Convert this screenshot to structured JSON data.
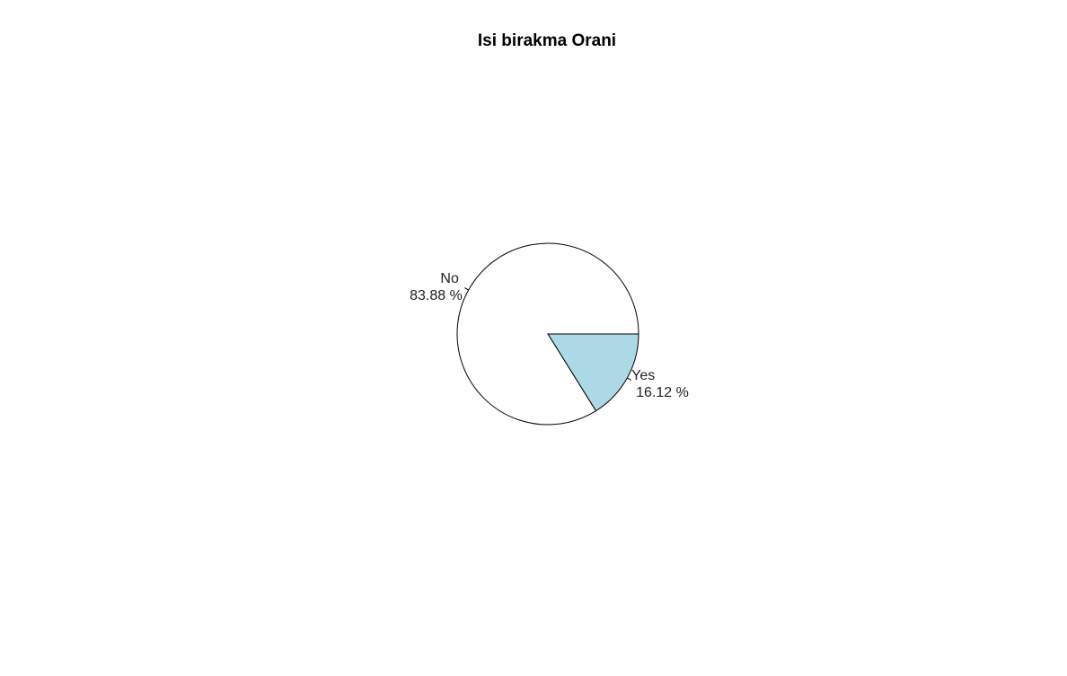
{
  "chart_data": {
    "type": "pie",
    "title": "Isi birakma Orani",
    "slices": [
      {
        "label": "Yes",
        "percent_text": "16.12 %",
        "value": 16.12,
        "color": "#ADD8E6"
      },
      {
        "label": "No",
        "percent_text": "83.88 %",
        "value": 83.88,
        "color": "#FFFFFF"
      }
    ],
    "start_angle": "0 degrees (3 o'clock)",
    "direction": "clockwise"
  }
}
